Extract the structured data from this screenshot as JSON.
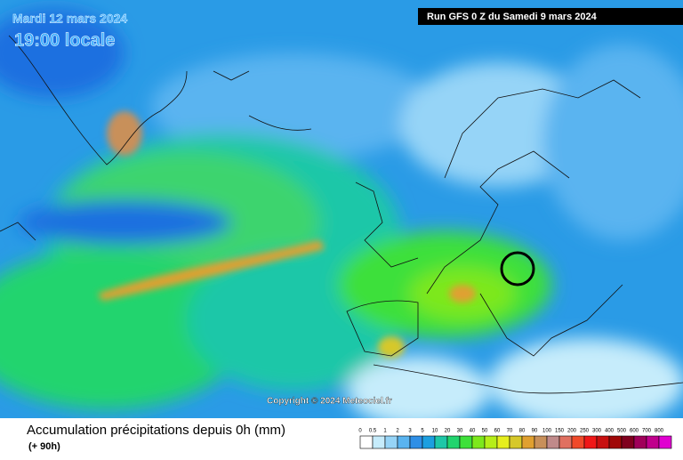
{
  "header": {
    "date": "Mardi 12 mars 2024",
    "time": "19:00 locale",
    "run": "Run GFS 0 Z du Samedi 9 mars 2024"
  },
  "copyright": "Copyright © 2024 Meteociel.fr",
  "legend": {
    "title": "Accumulation précipitations depuis 0h (mm)",
    "subtitle": "(+ 90h)",
    "levels": [
      {
        "label": "0",
        "color": "#ffffff"
      },
      {
        "label": "0.5",
        "color": "#c6ecfb"
      },
      {
        "label": "1",
        "color": "#96d4f7"
      },
      {
        "label": "2",
        "color": "#5ab4f0"
      },
      {
        "label": "3",
        "color": "#2f8fe6"
      },
      {
        "label": "5",
        "color": "#1c9fe0"
      },
      {
        "label": "10",
        "color": "#1ec7a8"
      },
      {
        "label": "20",
        "color": "#22d46e"
      },
      {
        "label": "30",
        "color": "#3ee03a"
      },
      {
        "label": "40",
        "color": "#7de81c"
      },
      {
        "label": "50",
        "color": "#b6ee18"
      },
      {
        "label": "60",
        "color": "#e6ee1e"
      },
      {
        "label": "70",
        "color": "#d6c82a"
      },
      {
        "label": "80",
        "color": "#e0a030"
      },
      {
        "label": "90",
        "color": "#c8905a"
      },
      {
        "label": "100",
        "color": "#c08a8a"
      },
      {
        "label": "150",
        "color": "#e07060"
      },
      {
        "label": "200",
        "color": "#f04a2a"
      },
      {
        "label": "250",
        "color": "#f01818"
      },
      {
        "label": "300",
        "color": "#c81010"
      },
      {
        "label": "400",
        "color": "#a00808"
      },
      {
        "label": "500",
        "color": "#80001e"
      },
      {
        "label": "600",
        "color": "#a0005a"
      },
      {
        "label": "700",
        "color": "#c0008c"
      },
      {
        "label": "800",
        "color": "#e000d0"
      }
    ]
  }
}
